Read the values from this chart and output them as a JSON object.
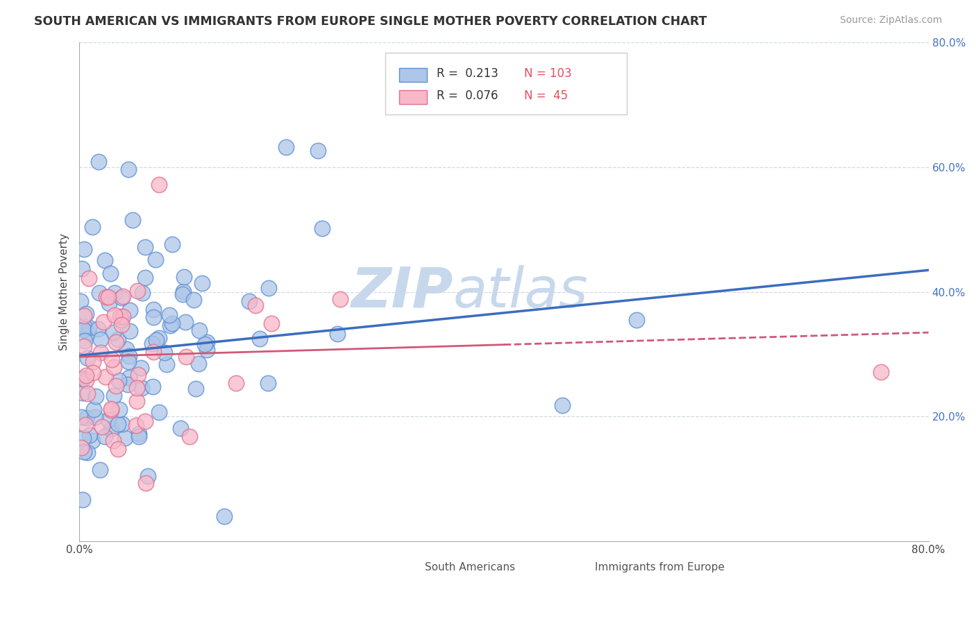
{
  "title": "SOUTH AMERICAN VS IMMIGRANTS FROM EUROPE SINGLE MOTHER POVERTY CORRELATION CHART",
  "source": "Source: ZipAtlas.com",
  "ylabel": "Single Mother Poverty",
  "series1_label": "South Americans",
  "series1_fill_color": "#aec6e8",
  "series1_edge_color": "#5b8fd4",
  "series1_line_color": "#3a6dbf",
  "series1_R": 0.213,
  "series1_N": 103,
  "series2_label": "Immigrants from Europe",
  "series2_fill_color": "#f7b8c8",
  "series2_edge_color": "#e07090",
  "series2_line_color": "#d05878",
  "series2_R": 0.076,
  "series2_N": 45,
  "trend1_x0": 0.0,
  "trend1_y0": 0.298,
  "trend1_x1": 0.8,
  "trend1_y1": 0.435,
  "trend2_x0": 0.0,
  "trend2_y0": 0.296,
  "trend2_x1": 0.8,
  "trend2_y1": 0.335,
  "trend2_solid_end": 0.4,
  "xlim": [
    0.0,
    0.8
  ],
  "ylim": [
    0.0,
    0.8
  ],
  "ytick_positions": [
    0.2,
    0.4,
    0.6,
    0.8
  ],
  "ytick_labels": [
    "20.0%",
    "40.0%",
    "60.0%",
    "80.0%"
  ],
  "xtick_positions": [
    0.0,
    0.8
  ],
  "xtick_labels": [
    "0.0%",
    "80.0%"
  ],
  "grid_color": "#d0d8e4",
  "bg_color": "#ffffff",
  "watermark": "ZIPatlas",
  "watermark_color": "#ccd8e8",
  "legend_R_color": "#4472c4",
  "legend_N_color": "#e05060",
  "legend_border_color": "#cccccc"
}
